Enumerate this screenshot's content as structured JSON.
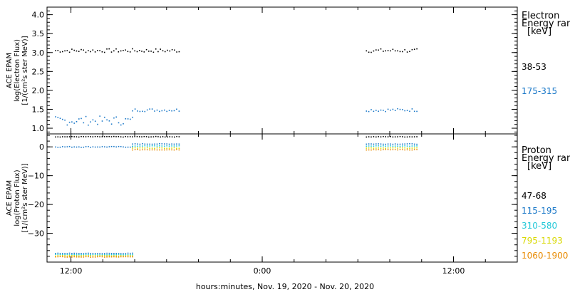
{
  "chart_data": [
    {
      "type": "scatter",
      "panel": "electron",
      "ylabel_lines": [
        "ACE EPAM",
        "log(Electron Flux)",
        "[1/(cm²s ster MeV)]"
      ],
      "ylim": [
        0.85,
        4.2
      ],
      "yticks": [
        1.0,
        1.5,
        2.0,
        2.5,
        3.0,
        3.5,
        4.0
      ],
      "ytick_labels": [
        "1.0",
        "1.5",
        "2.0",
        "2.5",
        "3.0",
        "3.5",
        "4.0"
      ],
      "legend_title": [
        "Electron",
        "Energy ranges",
        "[keV]"
      ],
      "series": [
        {
          "name": "38-53",
          "color": "#000000",
          "segments": [
            {
              "x_start": "11:00",
              "x_end": "18:45",
              "y_mean": 3.05,
              "y_jitter": 0.05
            },
            {
              "x_start": "06:30",
              "x_end": "09:40",
              "y_mean": 3.05,
              "y_jitter": 0.05
            }
          ]
        },
        {
          "name": "175-315",
          "color": "#1a78c8",
          "segments": [
            {
              "x_start": "11:00",
              "x_end": "15:50",
              "y_mean": 1.2,
              "y_jitter": 0.12
            },
            {
              "x_start": "15:50",
              "x_end": "18:45",
              "y_mean": 1.48,
              "y_jitter": 0.04
            },
            {
              "x_start": "06:30",
              "x_end": "09:40",
              "y_mean": 1.48,
              "y_jitter": 0.04
            }
          ]
        }
      ]
    },
    {
      "type": "scatter",
      "panel": "proton",
      "ylabel_lines": [
        "ACE EPAM",
        "log(Proton Flux)",
        "[1/(cm²s ster MeV)]"
      ],
      "ylim": [
        -40,
        4.5
      ],
      "yticks": [
        0,
        -10,
        -20,
        -30
      ],
      "ytick_labels": [
        "0",
        "−10",
        "−20",
        "−30"
      ],
      "legend_title": [
        "Proton",
        "Energy ranges",
        "[keV]"
      ],
      "series": [
        {
          "name": "47-68",
          "color": "#000000",
          "segments": [
            {
              "x_start": "11:00",
              "x_end": "18:45",
              "y_mean": 3.5,
              "y_jitter": 0.1
            },
            {
              "x_start": "06:30",
              "x_end": "09:40",
              "y_mean": 3.5,
              "y_jitter": 0.1
            }
          ]
        },
        {
          "name": "115-195",
          "color": "#1a78c8",
          "segments": [
            {
              "x_start": "11:00",
              "x_end": "15:50",
              "y_mean": 0.0,
              "y_jitter": 0.15
            },
            {
              "x_start": "11:00",
              "x_end": "15:50",
              "y_mean": -37.0,
              "y_jitter": 0.1
            },
            {
              "x_start": "15:50",
              "x_end": "18:45",
              "y_mean": 1.0,
              "y_jitter": 0.1
            },
            {
              "x_start": "06:30",
              "x_end": "09:40",
              "y_mean": 1.0,
              "y_jitter": 0.1
            }
          ]
        },
        {
          "name": "310-580",
          "color": "#22c8d8",
          "segments": [
            {
              "x_start": "11:00",
              "x_end": "15:50",
              "y_mean": -37.4,
              "y_jitter": 0.1
            },
            {
              "x_start": "15:50",
              "x_end": "18:45",
              "y_mean": 0.3,
              "y_jitter": 0.1
            },
            {
              "x_start": "06:30",
              "x_end": "09:40",
              "y_mean": 0.3,
              "y_jitter": 0.1
            }
          ]
        },
        {
          "name": "795-1193",
          "color": "#d8d800",
          "segments": [
            {
              "x_start": "11:00",
              "x_end": "15:50",
              "y_mean": -37.8,
              "y_jitter": 0.1
            },
            {
              "x_start": "15:50",
              "x_end": "18:45",
              "y_mean": -0.4,
              "y_jitter": 0.1
            },
            {
              "x_start": "06:30",
              "x_end": "09:40",
              "y_mean": -0.4,
              "y_jitter": 0.1
            }
          ]
        },
        {
          "name": "1060-1900",
          "color": "#e88a00",
          "segments": [
            {
              "x_start": "11:00",
              "x_end": "15:50",
              "y_mean": -38.2,
              "y_jitter": 0.1
            },
            {
              "x_start": "15:50",
              "x_end": "18:45",
              "y_mean": -1.0,
              "y_jitter": 0.1
            },
            {
              "x_start": "06:30",
              "x_end": "09:40",
              "y_mean": -1.0,
              "y_jitter": 0.1
            }
          ]
        }
      ]
    }
  ],
  "x_axis": {
    "ticks": [
      "Nov 19 12:00",
      "Nov 20 00:00",
      "Nov 20 12:00"
    ],
    "tick_labels": [
      "12:00",
      "0:00",
      "12:00"
    ],
    "xlabel": "hours:minutes, Nov. 19, 2020 - Nov. 20, 2020",
    "range": [
      "Nov 19 10:30",
      "Nov 20 16:00"
    ]
  }
}
